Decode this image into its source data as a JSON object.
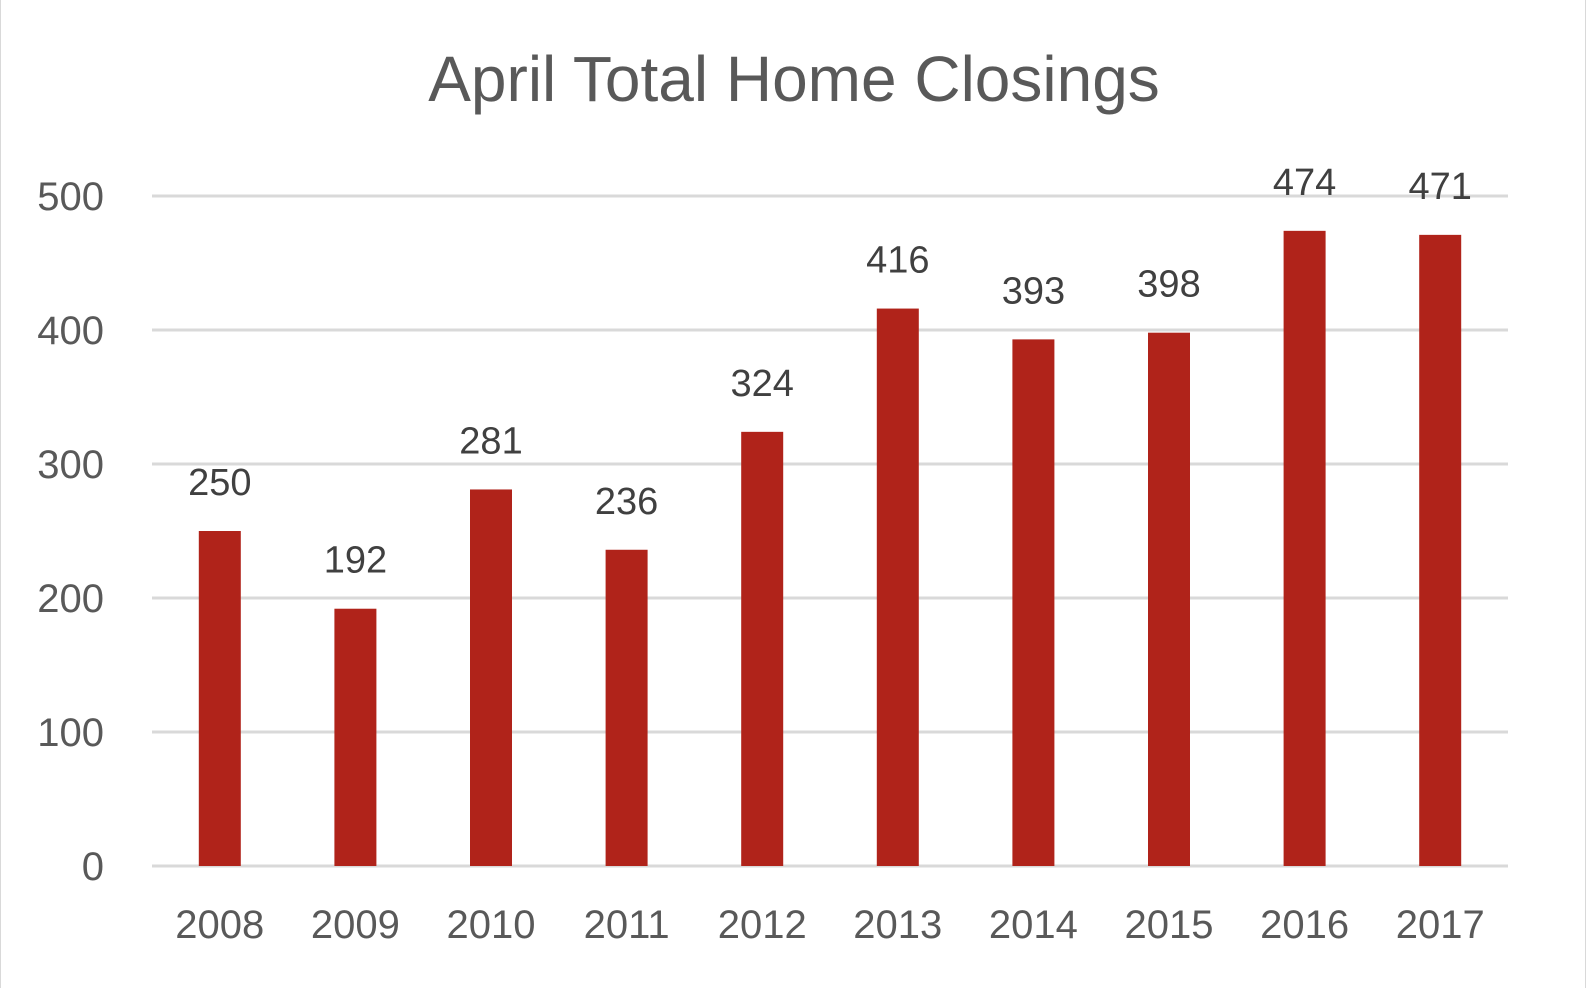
{
  "chart_data": {
    "type": "bar",
    "title": "April Total Home Closings",
    "xlabel": "",
    "ylabel": "",
    "categories": [
      "2008",
      "2009",
      "2010",
      "2011",
      "2012",
      "2013",
      "2014",
      "2015",
      "2016",
      "2017"
    ],
    "values": [
      250,
      192,
      281,
      236,
      324,
      416,
      393,
      398,
      474,
      471
    ],
    "data_labels": [
      "250",
      "192",
      "281",
      "236",
      "324",
      "416",
      "393",
      "398",
      "474",
      "471"
    ],
    "ylim": [
      0,
      500
    ],
    "yticks": [
      "0",
      "100",
      "200",
      "300",
      "400",
      "500"
    ],
    "grid": true,
    "legend": "none",
    "colors": {
      "bar": "#b0231a",
      "grid": "#d9d9d9",
      "text": "#595959",
      "data_label": "#404040"
    }
  }
}
